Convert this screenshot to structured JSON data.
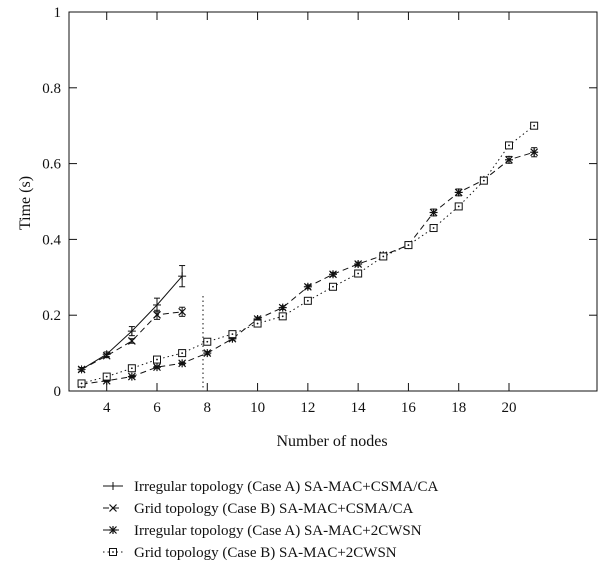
{
  "chart_data": {
    "type": "line",
    "xlabel": "Number of nodes",
    "ylabel": "Time (s)",
    "xlim": [
      2.5,
      23.5
    ],
    "ylim": [
      0,
      1
    ],
    "x_ticks": [
      4,
      6,
      8,
      10,
      12,
      14,
      16,
      18,
      20
    ],
    "y_ticks": [
      0,
      0.2,
      0.4,
      0.6,
      0.8,
      1
    ],
    "x_tick_labels": [
      "4",
      "6",
      "8",
      "10",
      "12",
      "14",
      "16",
      "18",
      "20"
    ],
    "y_tick_labels": [
      "0",
      "0.2",
      "0.4",
      "0.6",
      "0.8",
      "1"
    ],
    "grid": false,
    "legend_position": "bottom",
    "series": [
      {
        "name": "Irregular topology (Case A) SA-MAC+CSMA/CA",
        "marker": "plus",
        "line": "solid",
        "x": [
          3,
          4,
          5,
          6,
          7
        ],
        "y": [
          0.057,
          0.097,
          0.158,
          0.227,
          0.303
        ],
        "error": [
          0.005,
          0.006,
          0.012,
          0.018,
          0.028
        ]
      },
      {
        "name": "Grid topology (Case B) SA-MAC+CSMA/CA",
        "marker": "x",
        "line": "dashed",
        "x": [
          3,
          4,
          5,
          6,
          7
        ],
        "y": [
          0.057,
          0.093,
          0.132,
          0.201,
          0.209
        ],
        "error": [
          0.004,
          0.005,
          0.006,
          0.012,
          0.012
        ]
      },
      {
        "name": "Irregular topology (Case A) SA-MAC+2CWSN",
        "marker": "asterisk",
        "line": "dashed",
        "x": [
          3,
          4,
          5,
          6,
          7,
          8,
          9,
          10,
          11,
          12,
          13,
          14,
          15,
          16,
          17,
          18,
          19,
          20,
          21
        ],
        "y": [
          0.018,
          0.027,
          0.038,
          0.063,
          0.073,
          0.1,
          0.138,
          0.19,
          0.22,
          0.275,
          0.308,
          0.335,
          0.358,
          0.385,
          0.471,
          0.524,
          0.557,
          0.61,
          0.63
        ],
        "error": [
          0.002,
          0.002,
          0.002,
          0.003,
          0.003,
          0.004,
          0.004,
          0.005,
          0.005,
          0.005,
          0.005,
          0.005,
          0.005,
          0.005,
          0.009,
          0.009,
          0.006,
          0.009,
          0.012
        ]
      },
      {
        "name": "Grid topology (Case B) SA-MAC+2CWSN",
        "marker": "dotted-square",
        "line": "dotted",
        "x": [
          3,
          4,
          5,
          6,
          7,
          8,
          9,
          10,
          11,
          12,
          13,
          14,
          15,
          16,
          17,
          18,
          19,
          20,
          21
        ],
        "y": [
          0.02,
          0.038,
          0.06,
          0.083,
          0.1,
          0.13,
          0.15,
          0.178,
          0.197,
          0.238,
          0.275,
          0.31,
          0.355,
          0.385,
          0.43,
          0.487,
          0.555,
          0.648,
          0.7
        ],
        "error": [
          0,
          0,
          0,
          0,
          0,
          0,
          0,
          0,
          0,
          0,
          0,
          0,
          0,
          0,
          0,
          0,
          0,
          0,
          0
        ]
      }
    ]
  }
}
